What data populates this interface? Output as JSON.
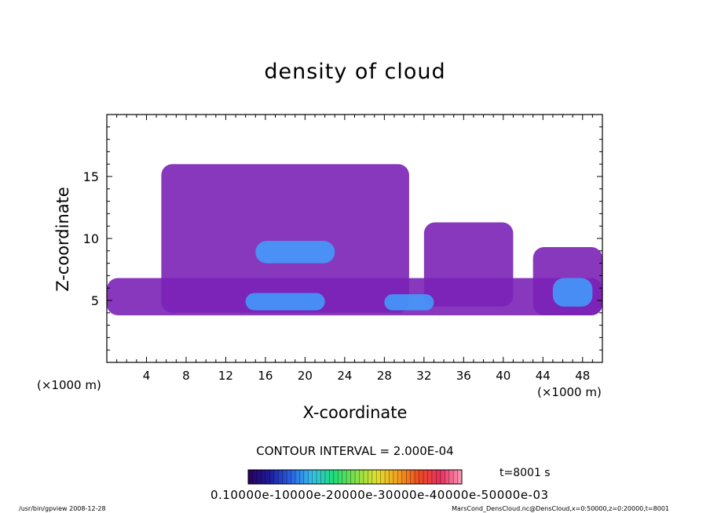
{
  "chart_data": {
    "type": "heatmap",
    "title": "density of cloud",
    "xlabel": "X-coordinate",
    "ylabel": "Z-coordinate",
    "x_unit": "(×1000 m)",
    "y_unit": "(×1000 m)",
    "xlim": [
      0,
      50
    ],
    "ylim": [
      0,
      20
    ],
    "x_ticks": [
      "4",
      "8",
      "12",
      "16",
      "20",
      "24",
      "28",
      "32",
      "36",
      "40",
      "44",
      "48"
    ],
    "y_ticks": [
      "5",
      "10",
      "15"
    ],
    "contour_interval": "CONTOUR INTERVAL = 2.000E-04",
    "colorbar_labels": "0.10000e-10000e-20000e-30000e-40000e-50000e-03",
    "time_label": "t=8001 s",
    "colors": {
      "low": "#7b22b6",
      "mid": "#3030c8",
      "high": "#40a0ff",
      "peak": "#a0e8ff",
      "background": "#ffffff"
    },
    "colorbar_colors": [
      "#2a0060",
      "#1c1c9a",
      "#2a62e6",
      "#37c0e8",
      "#1fdc7a",
      "#7fe04a",
      "#e0e030",
      "#f3a020",
      "#ec4a20",
      "#e83060",
      "#ff9ab8"
    ],
    "cloud_regions": [
      {
        "x": [
          0,
          50
        ],
        "z": [
          3.8,
          6.8
        ],
        "level": "low"
      },
      {
        "x": [
          5.5,
          30.5
        ],
        "z": [
          4.0,
          16.0
        ],
        "level": "low"
      },
      {
        "x": [
          32,
          41
        ],
        "z": [
          4.5,
          11.3
        ],
        "level": "low"
      },
      {
        "x": [
          43,
          50
        ],
        "z": [
          3.8,
          9.3
        ],
        "level": "low"
      },
      {
        "x": [
          15,
          23
        ],
        "z": [
          8.0,
          9.8
        ],
        "level": "high"
      },
      {
        "x": [
          14,
          22
        ],
        "z": [
          4.2,
          5.6
        ],
        "level": "high"
      },
      {
        "x": [
          28,
          33
        ],
        "z": [
          4.2,
          5.5
        ],
        "level": "high"
      },
      {
        "x": [
          45,
          49
        ],
        "z": [
          4.5,
          6.8
        ],
        "level": "high"
      }
    ]
  },
  "footer": {
    "left": "/usr/bin/gpview   2008-12-28",
    "right": "MarsCond_DensCloud.nc@DensCloud,x=0:50000,z=0:20000,t=8001"
  }
}
